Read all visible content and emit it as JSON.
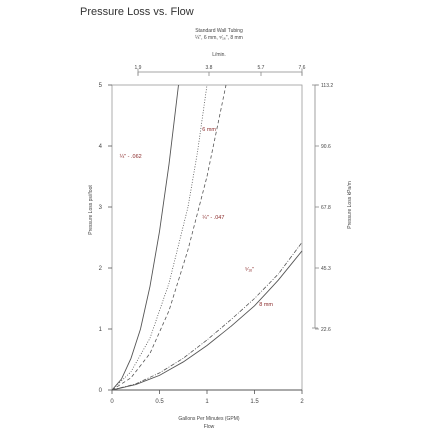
{
  "chart_data": {
    "type": "line",
    "title": "Pressure Loss vs. Flow",
    "subtitle_lines": [
      "Standard Wall Tubing",
      "¼\", 6 mm, ⁵⁄₁₆\", 8 mm"
    ],
    "xlabel_lines": [
      "Gallons Per Minutes (GPM)",
      "Flow"
    ],
    "ylabel_left": "Pressure Loss psi/foot",
    "ylabel_right": "Pressure Loss kPa/m",
    "top_axis_label": "L/min.",
    "xlim": [
      0,
      2
    ],
    "ylim": [
      0,
      5
    ],
    "x_ticks": [
      {
        "value": 0,
        "label": "0"
      },
      {
        "value": 0.5,
        "label": "0.5"
      },
      {
        "value": 1,
        "label": "1"
      },
      {
        "value": 1.5,
        "label": "1.5"
      },
      {
        "value": 2,
        "label": "2"
      }
    ],
    "y_ticks": [
      {
        "value": 0,
        "label": "0"
      },
      {
        "value": 1,
        "label": "1"
      },
      {
        "value": 2,
        "label": "2"
      },
      {
        "value": 3,
        "label": "3"
      },
      {
        "value": 4,
        "label": "4"
      },
      {
        "value": 5,
        "label": "5"
      }
    ],
    "top_ticks": [
      {
        "value": 0.5,
        "label": "1.9"
      },
      {
        "value": 1.0,
        "label": "3.8"
      },
      {
        "value": 1.5,
        "label": "5.7"
      },
      {
        "value": 2.0,
        "label": "7.6"
      }
    ],
    "right_ticks": [
      {
        "value": 1,
        "label": "22.6"
      },
      {
        "value": 2,
        "label": "45.3"
      },
      {
        "value": 3,
        "label": "67.8"
      },
      {
        "value": 4,
        "label": "90.6"
      },
      {
        "value": 5,
        "label": "113.2"
      }
    ],
    "series": [
      {
        "name": "¼\" - .062",
        "style": "solid",
        "x": [
          0,
          0.1,
          0.2,
          0.3,
          0.4,
          0.5,
          0.6,
          0.7
        ],
        "y": [
          0,
          0.18,
          0.52,
          1.0,
          1.7,
          2.6,
          3.7,
          5.0
        ]
      },
      {
        "name": "6 mm",
        "style": "dotted",
        "x": [
          0,
          0.2,
          0.4,
          0.6,
          0.8,
          0.9,
          1.0
        ],
        "y": [
          0,
          0.3,
          0.85,
          1.75,
          3.0,
          3.9,
          5.0
        ]
      },
      {
        "name": "¼\" - .047",
        "style": "dashed",
        "x": [
          0,
          0.2,
          0.4,
          0.6,
          0.8,
          1.0,
          1.2
        ],
        "y": [
          0,
          0.2,
          0.6,
          1.3,
          2.3,
          3.5,
          5.0
        ]
      },
      {
        "name": "⁵⁄₁₆\"",
        "style": "dashdot",
        "x": [
          0,
          0.25,
          0.5,
          0.75,
          1.0,
          1.25,
          1.5,
          1.75,
          2.0
        ],
        "y": [
          0,
          0.1,
          0.28,
          0.52,
          0.82,
          1.15,
          1.5,
          1.9,
          2.42
        ]
      },
      {
        "name": "8 mm",
        "style": "solid",
        "x": [
          0,
          0.25,
          0.5,
          0.75,
          1.0,
          1.25,
          1.5,
          1.75,
          2.0
        ],
        "y": [
          0,
          0.09,
          0.24,
          0.46,
          0.73,
          1.04,
          1.38,
          1.8,
          2.28
        ]
      }
    ],
    "annotations": [
      {
        "text": "¼\" - .062",
        "x": 0.08,
        "y": 3.8
      },
      {
        "text": "6 mm",
        "x": 0.95,
        "y": 4.25
      },
      {
        "text": "¼\" - .047",
        "x": 0.95,
        "y": 2.8
      },
      {
        "text": "⁵⁄₁₆\"",
        "x": 1.4,
        "y": 1.95
      },
      {
        "text": "8 mm",
        "x": 1.55,
        "y": 1.38
      }
    ],
    "colors": {
      "curves": "#555555",
      "frame": "#999999",
      "annotations": "#8a2a2a",
      "top_axis": "#888888"
    },
    "grid": false
  }
}
